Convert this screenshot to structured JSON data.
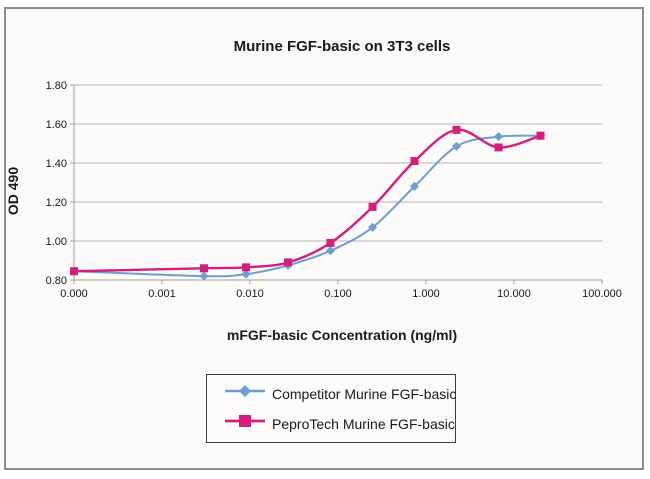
{
  "chart_data": {
    "type": "line",
    "title": "Murine FGF-basic on 3T3 cells",
    "xlabel": "mFGF-basic Concentration (ng/ml)",
    "ylabel": "OD 490",
    "x_scale": "log",
    "x_ticks": [
      "0.000",
      "0.001",
      "0.010",
      "0.100",
      "1.000",
      "10.000",
      "100.000"
    ],
    "x_tick_values": [
      0,
      0.001,
      0.01,
      0.1,
      1,
      10,
      100
    ],
    "y_ticks": [
      "0.80",
      "1.00",
      "1.20",
      "1.40",
      "1.60",
      "1.80"
    ],
    "ylim": [
      0.8,
      1.8
    ],
    "grid": "horizontal",
    "legend_position": "bottom",
    "x": [
      0,
      0.003,
      0.009,
      0.027,
      0.082,
      0.247,
      0.74,
      2.22,
      6.67,
      20
    ],
    "series": [
      {
        "name": "Competitor Murine FGF-basic",
        "color": "#6e9dd1",
        "marker": "diamond",
        "values": [
          0.845,
          0.82,
          0.83,
          0.875,
          0.95,
          1.07,
          1.28,
          1.485,
          1.535,
          1.54
        ]
      },
      {
        "name": "PeproTech Murine FGF-basic",
        "color": "#d51d7d",
        "marker": "square",
        "values": [
          0.845,
          0.86,
          0.865,
          0.89,
          0.99,
          1.175,
          1.41,
          1.57,
          1.48,
          1.54
        ]
      }
    ],
    "colors": {
      "gridline": "#b5b5b5",
      "axis": "#9e9e9e",
      "tick_text": "#1a1a1a",
      "frame_border": "#8c8c8c",
      "background": "#fbfaf8"
    }
  }
}
